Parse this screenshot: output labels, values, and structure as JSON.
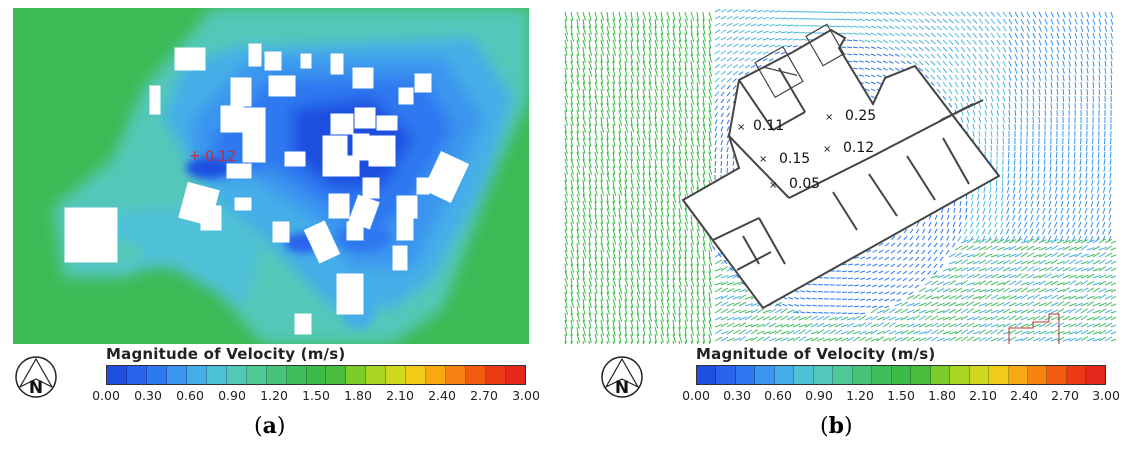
{
  "panel_a": {
    "annotation": "0.12",
    "legend": {
      "title": "Magnitude of Velocity (m/s)",
      "ticks": [
        "0.00",
        "0.30",
        "0.60",
        "0.90",
        "1.20",
        "1.50",
        "1.80",
        "2.10",
        "2.40",
        "2.70",
        "3.00"
      ],
      "north_label": "N"
    },
    "caption_open": "(",
    "caption_letter": "a",
    "caption_close": ")"
  },
  "panel_b": {
    "annotations": [
      "0.11",
      "0.25",
      "0.15",
      "0.12",
      "0.05"
    ],
    "legend": {
      "title": "Magnitude of Velocity (m/s)",
      "ticks": [
        "0.00",
        "0.30",
        "0.60",
        "0.90",
        "1.20",
        "1.50",
        "1.80",
        "2.10",
        "2.40",
        "2.70",
        "3.00"
      ],
      "north_label": "N"
    },
    "caption_open": "(",
    "caption_letter": "b",
    "caption_close": ")"
  },
  "colors": {
    "scale": [
      "#1f4fe0",
      "#2a62ec",
      "#2e78f0",
      "#3a95ee",
      "#45aee8",
      "#4fc1d8",
      "#53c8b8",
      "#4fc898",
      "#47c37a",
      "#3fbe5e",
      "#3bbb48",
      "#48be3c",
      "#7ccc2c",
      "#a8d622",
      "#cfd81e",
      "#f0cc18",
      "#f7a813",
      "#f68212",
      "#f25c12",
      "#ec3a14",
      "#e5261a"
    ],
    "field_green": "#3dba55",
    "calm_blue": "#2c6fe6",
    "building": "#ffffff",
    "outline": "#333333"
  }
}
